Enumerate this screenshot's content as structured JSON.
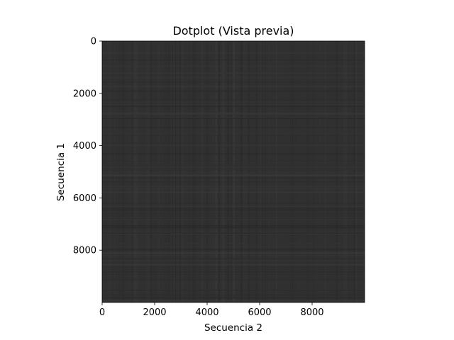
{
  "chart_data": {
    "type": "heatmap",
    "title": "Dotplot (Vista previa)",
    "xlabel": "Secuencia 2",
    "ylabel": "Secuencia 1",
    "xlim": [
      0,
      10000
    ],
    "ylim": [
      10000,
      0
    ],
    "x_ticks": [
      0,
      2000,
      4000,
      6000,
      8000
    ],
    "y_ticks": [
      0,
      2000,
      4000,
      6000,
      8000
    ],
    "x_tick_labels": [
      "0",
      "2000",
      "4000",
      "6000",
      "8000"
    ],
    "y_tick_labels": [
      "0",
      "2000",
      "4000",
      "6000",
      "8000"
    ],
    "colormap": "gray",
    "background_color": "#303030",
    "grid": false,
    "legend": "none"
  }
}
